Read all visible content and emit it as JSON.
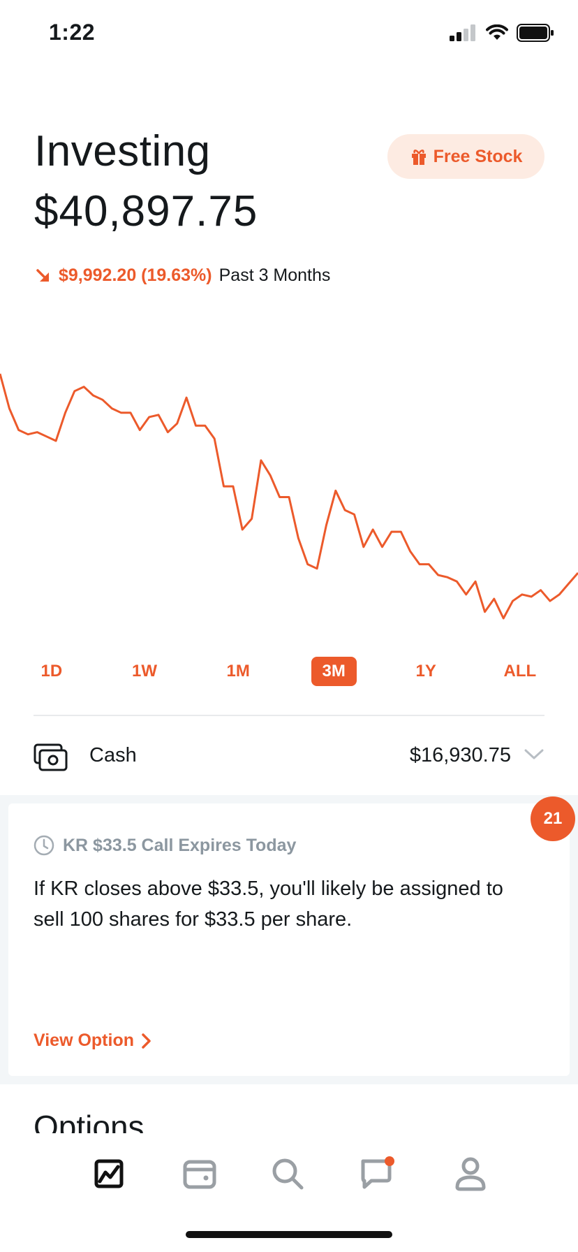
{
  "status_bar": {
    "time": "1:22"
  },
  "header": {
    "title": "Investing",
    "portfolio_value": "$40,897.75",
    "free_stock_label": "Free Stock",
    "change_amount": "$9,992.20 (19.63%)",
    "change_period": "Past 3 Months",
    "change_direction": "down"
  },
  "chart_data": {
    "type": "line",
    "series": [
      {
        "values": [
          100,
          92,
          87,
          86,
          86.5,
          85.5,
          84.5,
          91,
          96,
          97,
          95,
          94,
          92,
          91,
          91,
          87,
          90,
          90.5,
          86.5,
          88.5,
          94.5,
          88,
          88,
          85,
          74,
          74,
          64,
          66.5,
          80,
          76.5,
          71.5,
          71.5,
          62,
          56,
          55,
          65,
          73,
          68.5,
          67.5,
          60,
          64,
          60,
          63.5,
          63.5,
          59,
          56,
          56,
          53.5,
          53,
          52,
          49,
          52,
          45,
          48,
          43.5,
          47.5,
          49,
          48.5,
          50,
          47.5,
          49,
          51.5,
          54
        ]
      }
    ],
    "color": "#ec5a2b"
  },
  "range_tabs": {
    "items": [
      "1D",
      "1W",
      "1M",
      "3M",
      "1Y",
      "ALL"
    ],
    "active": "3M"
  },
  "cash": {
    "label": "Cash",
    "value": "$16,930.75"
  },
  "notification_card": {
    "badge_count": "21",
    "title": "KR $33.5 Call Expires Today",
    "body": "If KR closes above $33.5, you'll likely be assigned to sell 100 shares for $33.5 per share.",
    "link_label": "View Option"
  },
  "options_section": {
    "title": "Options"
  },
  "bottom_nav": {
    "items": [
      {
        "icon": "chart-icon",
        "active": true
      },
      {
        "icon": "wallet-icon",
        "active": false
      },
      {
        "icon": "search-icon",
        "active": false
      },
      {
        "icon": "messages-icon",
        "active": false,
        "has_dot": true
      },
      {
        "icon": "profile-icon",
        "active": false
      }
    ]
  },
  "colors": {
    "accent": "#ec5a2b",
    "accent_light": "#fdebe2",
    "text": "#15191c",
    "muted": "#8c97a0"
  }
}
